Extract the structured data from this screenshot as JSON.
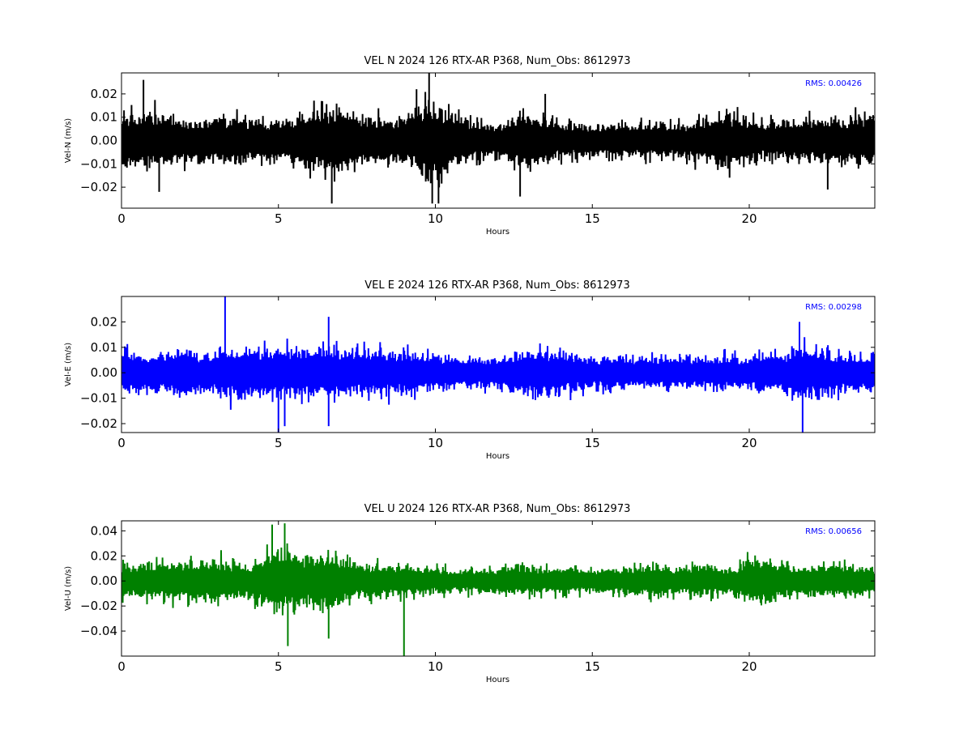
{
  "chart_data": [
    {
      "type": "line",
      "title": "VEL N 2024 126 RTX-AR  P368, Num_Obs: 8612973",
      "xlabel": "Hours",
      "ylabel": "Vel-N (m/s)",
      "xlim": [
        0,
        24
      ],
      "ylim": [
        -0.029,
        0.029
      ],
      "xticks": [
        "0",
        "5",
        "10",
        "15",
        "20"
      ],
      "yticks": [
        "−0.02",
        "−0.01",
        "0.00",
        "0.01",
        "0.02"
      ],
      "grid": false,
      "color": "#000000",
      "rms_label": "RMS:  0.00426",
      "rms_color": "#0000ff",
      "series": [
        {
          "x": [
            0,
            0.5,
            1,
            1.5,
            2,
            2.5,
            3,
            3.5,
            4,
            4.5,
            5,
            5.5,
            6,
            6.5,
            7,
            7.5,
            8,
            8.5,
            9,
            9.5,
            10,
            10.5,
            11,
            11.5,
            12,
            12.5,
            13,
            13.5,
            14,
            14.5,
            15,
            15.5,
            16,
            16.5,
            17,
            17.5,
            18,
            18.5,
            19,
            19.5,
            20,
            20.5,
            21,
            21.5,
            22,
            22.5,
            23,
            23.5,
            24
          ],
          "envelope": [
            0.016,
            0.018,
            0.017,
            0.015,
            0.013,
            0.012,
            0.013,
            0.014,
            0.013,
            0.012,
            0.013,
            0.014,
            0.017,
            0.02,
            0.019,
            0.015,
            0.014,
            0.014,
            0.015,
            0.02,
            0.023,
            0.017,
            0.013,
            0.011,
            0.01,
            0.015,
            0.017,
            0.014,
            0.011,
            0.01,
            0.01,
            0.011,
            0.01,
            0.01,
            0.011,
            0.01,
            0.011,
            0.013,
            0.015,
            0.016,
            0.014,
            0.011,
            0.012,
            0.013,
            0.014,
            0.013,
            0.014,
            0.015,
            0.015
          ],
          "spikes": [
            [
              0.7,
              0.026
            ],
            [
              1.2,
              -0.022
            ],
            [
              6.7,
              -0.027
            ],
            [
              9.4,
              0.022
            ],
            [
              9.8,
              0.029
            ],
            [
              9.9,
              -0.027
            ],
            [
              10.1,
              -0.027
            ],
            [
              12.7,
              -0.024
            ],
            [
              13.5,
              0.02
            ],
            [
              22.5,
              -0.021
            ]
          ]
        }
      ]
    },
    {
      "type": "line",
      "title": "VEL E 2024 126 RTX-AR  P368, Num_Obs: 8612973",
      "xlabel": "Hours",
      "ylabel": "Vel-E (m/s)",
      "xlim": [
        0,
        24
      ],
      "ylim": [
        -0.0235,
        0.03
      ],
      "xticks": [
        "0",
        "5",
        "10",
        "15",
        "20"
      ],
      "yticks": [
        "−0.02",
        "−0.01",
        "0.00",
        "0.01",
        "0.02"
      ],
      "grid": false,
      "color": "#0000ff",
      "rms_label": "RMS:  0.00298",
      "rms_color": "#0000ff",
      "series": [
        {
          "x": [
            0,
            0.5,
            1,
            1.5,
            2,
            2.5,
            3,
            3.5,
            4,
            4.5,
            5,
            5.5,
            6,
            6.5,
            7,
            7.5,
            8,
            8.5,
            9,
            9.5,
            10,
            10.5,
            11,
            11.5,
            12,
            12.5,
            13,
            13.5,
            14,
            14.5,
            15,
            15.5,
            16,
            16.5,
            17,
            17.5,
            18,
            18.5,
            19,
            19.5,
            20,
            20.5,
            21,
            21.5,
            22,
            22.5,
            23,
            23.5,
            24
          ],
          "envelope": [
            0.012,
            0.011,
            0.011,
            0.011,
            0.013,
            0.011,
            0.012,
            0.014,
            0.014,
            0.014,
            0.014,
            0.014,
            0.014,
            0.014,
            0.014,
            0.013,
            0.012,
            0.012,
            0.012,
            0.011,
            0.01,
            0.009,
            0.009,
            0.008,
            0.008,
            0.011,
            0.013,
            0.013,
            0.012,
            0.01,
            0.009,
            0.009,
            0.009,
            0.009,
            0.009,
            0.009,
            0.009,
            0.008,
            0.009,
            0.009,
            0.009,
            0.01,
            0.011,
            0.014,
            0.014,
            0.012,
            0.011,
            0.01,
            0.01
          ],
          "spikes": [
            [
              3.3,
              0.03
            ],
            [
              5.0,
              -0.024
            ],
            [
              5.2,
              -0.021
            ],
            [
              6.6,
              0.022
            ],
            [
              6.6,
              -0.021
            ],
            [
              21.7,
              -0.024
            ],
            [
              21.6,
              0.02
            ]
          ]
        }
      ]
    },
    {
      "type": "line",
      "title": "VEL U 2024 126 RTX-AR  P368, Num_Obs: 8612973",
      "xlabel": "Hours",
      "ylabel": "Vel-U (m/s)",
      "xlim": [
        0,
        24
      ],
      "ylim": [
        -0.06,
        0.048
      ],
      "xticks": [
        "0",
        "5",
        "10",
        "15",
        "20"
      ],
      "yticks": [
        "−0.04",
        "−0.02",
        "0.00",
        "0.02",
        "0.04"
      ],
      "grid": false,
      "color": "#008000",
      "rms_label": "RMS:  0.00656",
      "rms_color": "#0000ff",
      "series": [
        {
          "x": [
            0,
            0.5,
            1,
            1.5,
            2,
            2.5,
            3,
            3.5,
            4,
            4.5,
            5,
            5.5,
            6,
            6.5,
            7,
            7.5,
            8,
            8.5,
            9,
            9.5,
            10,
            10.5,
            11,
            11.5,
            12,
            12.5,
            13,
            13.5,
            14,
            14.5,
            15,
            15.5,
            16,
            16.5,
            17,
            17.5,
            18,
            18.5,
            19,
            19.5,
            20,
            20.5,
            21,
            21.5,
            22,
            22.5,
            23,
            23.5,
            24
          ],
          "envelope": [
            0.017,
            0.02,
            0.02,
            0.021,
            0.022,
            0.025,
            0.023,
            0.02,
            0.018,
            0.03,
            0.036,
            0.034,
            0.028,
            0.033,
            0.026,
            0.02,
            0.018,
            0.018,
            0.017,
            0.016,
            0.015,
            0.013,
            0.013,
            0.014,
            0.014,
            0.016,
            0.016,
            0.015,
            0.015,
            0.014,
            0.014,
            0.015,
            0.016,
            0.016,
            0.017,
            0.016,
            0.017,
            0.017,
            0.016,
            0.016,
            0.024,
            0.026,
            0.02,
            0.018,
            0.018,
            0.018,
            0.018,
            0.017,
            0.015
          ],
          "spikes": [
            [
              5.2,
              0.046
            ],
            [
              5.3,
              -0.052
            ],
            [
              6.6,
              -0.046
            ],
            [
              9.0,
              -0.06
            ],
            [
              4.8,
              0.045
            ]
          ]
        }
      ]
    }
  ]
}
